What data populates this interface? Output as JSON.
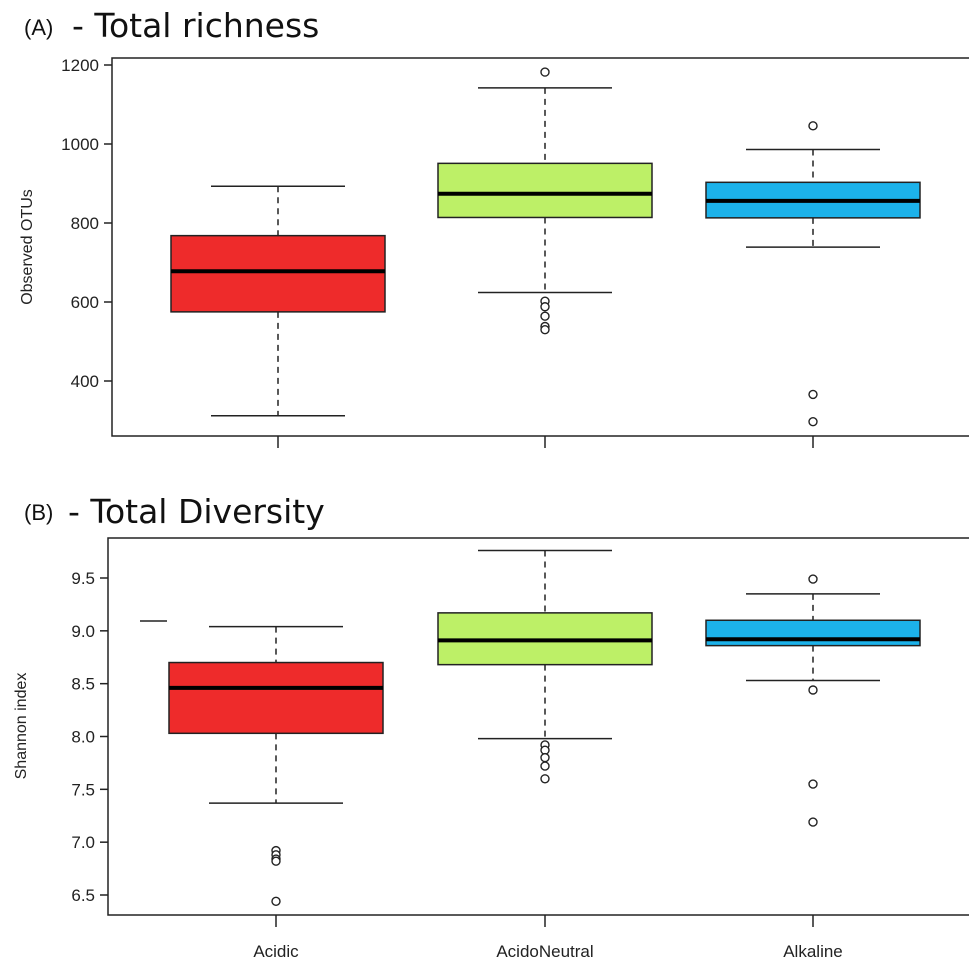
{
  "chart_data": [
    {
      "type": "box",
      "panel_tag": "(A)",
      "title": "- Total richness",
      "xlabel": "",
      "ylabel": "Observed OTUs",
      "ylim": [
        260,
        1220
      ],
      "yticks": [
        400,
        600,
        800,
        1000,
        1200
      ],
      "yticklabels": [
        "400",
        "600",
        "800",
        "1000",
        "1200"
      ],
      "categories": [
        "Acidic",
        "AcidoNeutral",
        "Alkaline"
      ],
      "colors": [
        "#ee2b2b",
        "#bdf067",
        "#1cb2ea"
      ],
      "boxes": [
        {
          "category": "Acidic",
          "whisker_low": 312,
          "q1": 575,
          "median": 678,
          "q3": 768,
          "whisker_high": 893,
          "outliers": []
        },
        {
          "category": "AcidoNeutral",
          "whisker_low": 624,
          "q1": 814,
          "median": 874,
          "q3": 951,
          "whisker_high": 1142,
          "outliers": [
            1182,
            602,
            588,
            564,
            538,
            530
          ]
        },
        {
          "category": "Alkaline",
          "whisker_low": 739,
          "q1": 813,
          "median": 856,
          "q3": 903,
          "whisker_high": 986,
          "outliers": [
            1046,
            366,
            297
          ]
        }
      ]
    },
    {
      "type": "box",
      "panel_tag": "(B)",
      "title": "- Total Diversity",
      "xlabel": "",
      "ylabel": "Shannon index",
      "ylim": [
        6.35,
        9.8
      ],
      "yticks": [
        6.5,
        7.0,
        7.5,
        8.0,
        8.5,
        9.0,
        9.5
      ],
      "yticklabels": [
        "6.5",
        "7.0",
        "7.5",
        "8.0",
        "8.5",
        "9.0",
        "9.5"
      ],
      "categories": [
        "Acidic",
        "AcidoNeutral",
        "Alkaline"
      ],
      "colors": [
        "#ee2b2b",
        "#bdf067",
        "#1cb2ea"
      ],
      "boxes": [
        {
          "category": "Acidic",
          "whisker_low": 7.37,
          "q1": 8.03,
          "median": 8.46,
          "q3": 8.7,
          "whisker_high": 9.04,
          "outliers": [
            6.92,
            6.88,
            6.84,
            6.82,
            6.44
          ]
        },
        {
          "category": "AcidoNeutral",
          "whisker_low": 7.98,
          "q1": 8.68,
          "median": 8.91,
          "q3": 9.17,
          "whisker_high": 9.76,
          "outliers": [
            7.92,
            7.87,
            7.8,
            7.72,
            7.6
          ]
        },
        {
          "category": "Alkaline",
          "whisker_low": 8.53,
          "q1": 8.86,
          "median": 8.92,
          "q3": 9.1,
          "whisker_high": 9.35,
          "outliers": [
            9.49,
            8.44,
            7.55,
            7.19
          ]
        }
      ]
    }
  ]
}
